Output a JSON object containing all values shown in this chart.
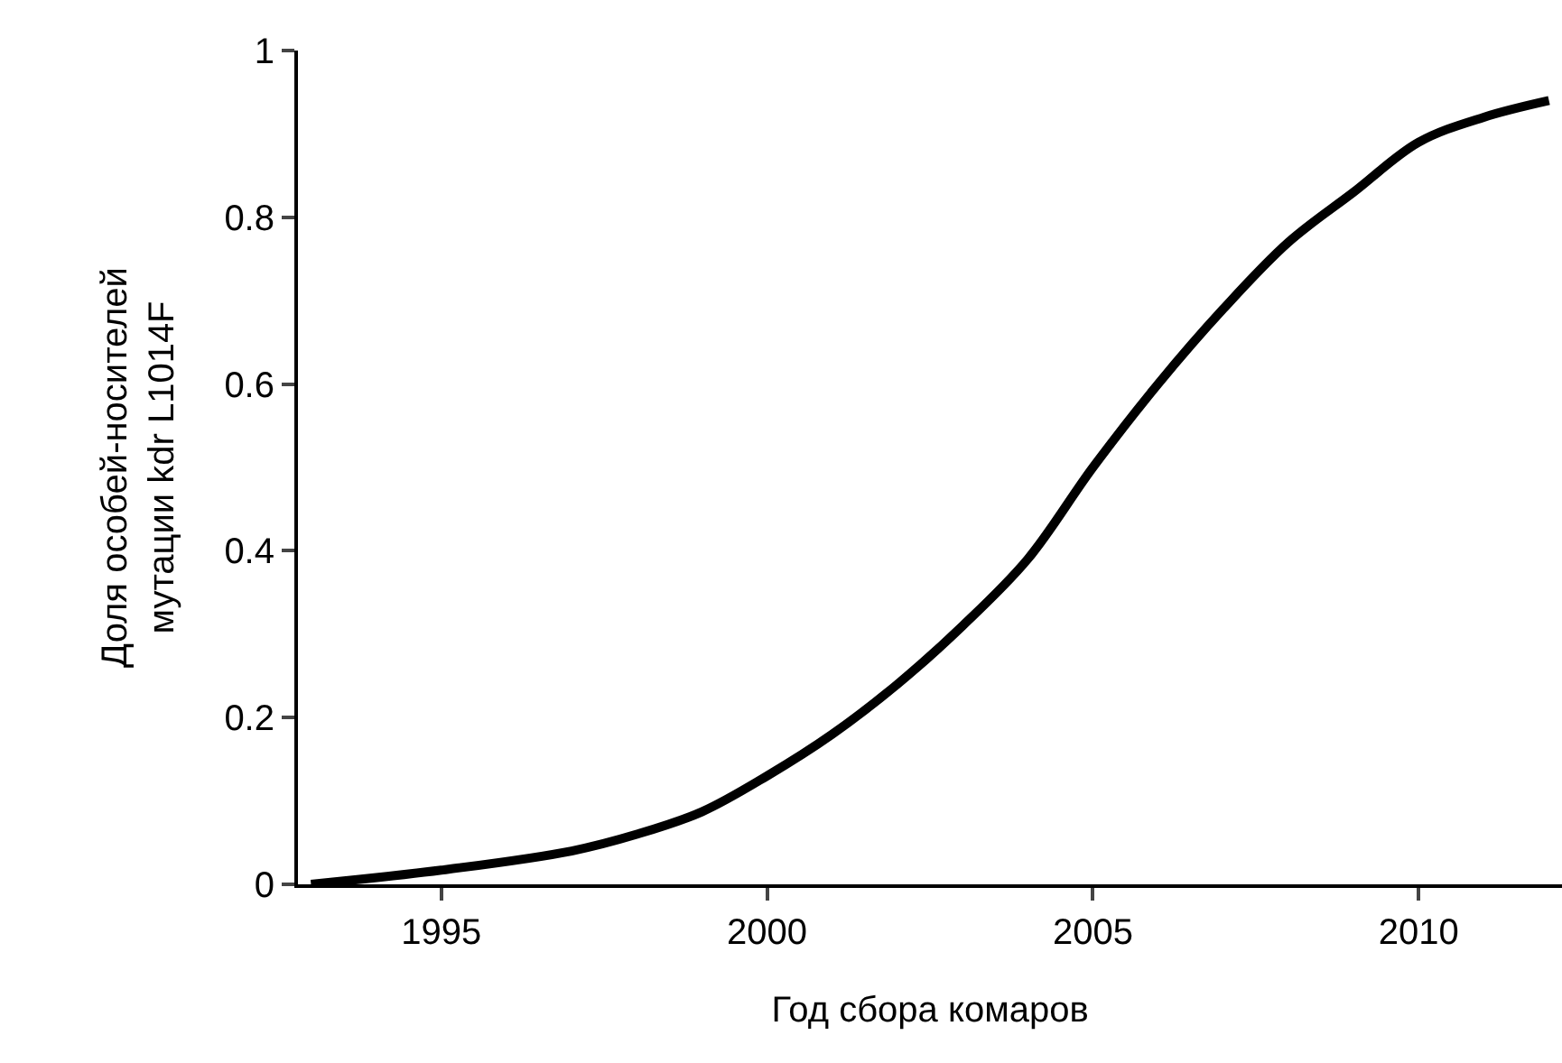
{
  "chart_data": {
    "type": "line",
    "xlabel": "Год сбора комаров",
    "ylabel": "Доля особей-носителей\nмутации kdr L1014F",
    "x": [
      1993,
      1995,
      1997,
      1998,
      1999,
      2000,
      2001,
      2002,
      2003,
      2004,
      2005,
      2006,
      2007,
      2008,
      2009,
      2010,
      2011,
      2012
    ],
    "series": [
      {
        "color": "#000000",
        "values": [
          0,
          0.017,
          0.04,
          0.06,
          0.087,
          0.13,
          0.18,
          0.24,
          0.31,
          0.39,
          0.5,
          0.6,
          0.69,
          0.77,
          0.83,
          0.89,
          0.92,
          0.94
        ]
      }
    ],
    "xlim": [
      1992.8,
      2012.2
    ],
    "xticks": [
      1995,
      2000,
      2005,
      2010
    ],
    "ylim": [
      0,
      1
    ],
    "yticks": [
      0,
      0.2,
      0.4,
      0.6,
      0.8,
      1
    ],
    "marker": "none",
    "line_style": "solid"
  }
}
